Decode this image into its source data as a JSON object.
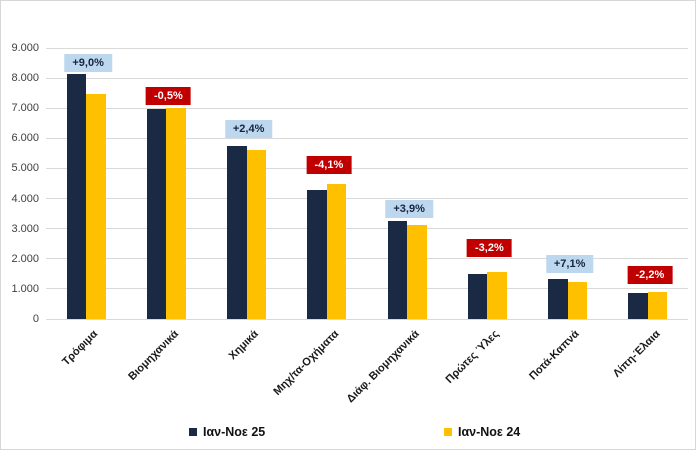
{
  "chart_data": {
    "type": "bar",
    "title": "",
    "categories": [
      "Τρόφιμα",
      "Βιομηχανικά",
      "Χημικά",
      "Μηχ/τα-Οχήματα",
      "Διάφ. Βιομηχανικά",
      "Πρώτες Ύλες",
      "Ποτά-Καπνά",
      "Λίπη-Έλαια"
    ],
    "series": [
      {
        "name": "Ιαν-Νοε 25",
        "color": "#1a2944",
        "values": [
          8150,
          6960,
          5750,
          4285,
          3250,
          1500,
          1330,
          870
        ]
      },
      {
        "name": "Ιαν-Νοε 24",
        "color": "#ffc000",
        "values": [
          7480,
          6995,
          5615,
          4470,
          3130,
          1550,
          1240,
          890
        ]
      }
    ],
    "change_labels": [
      {
        "text": "+9,0%",
        "positive": true
      },
      {
        "text": "-0,5%",
        "positive": false
      },
      {
        "text": "+2,4%",
        "positive": true
      },
      {
        "text": "-4,1%",
        "positive": false
      },
      {
        "text": "+3,9%",
        "positive": true
      },
      {
        "text": "-3,2%",
        "positive": false
      },
      {
        "text": "+7,1%",
        "positive": true
      },
      {
        "text": "-2,2%",
        "positive": false
      }
    ],
    "xlabel": "",
    "ylabel": "",
    "ylim": [
      0,
      9000
    ],
    "ytick_step": 1000,
    "ytick_labels": [
      "0",
      "1.000",
      "2.000",
      "3.000",
      "4.000",
      "5.000",
      "6.000",
      "7.000",
      "8.000",
      "9.000"
    ],
    "grid": true,
    "legend_position": "bottom",
    "colors": {
      "series_25": "#1a2944",
      "series_24": "#ffc000",
      "positive_label_bg": "#bdd7ee",
      "positive_label_text": "#17253f",
      "negative_label_bg": "#c00000",
      "negative_label_text": "#ffffff",
      "gridline": "#d9d9d9",
      "tick_text": "#404040",
      "category_text": "#1a1a1a"
    }
  }
}
